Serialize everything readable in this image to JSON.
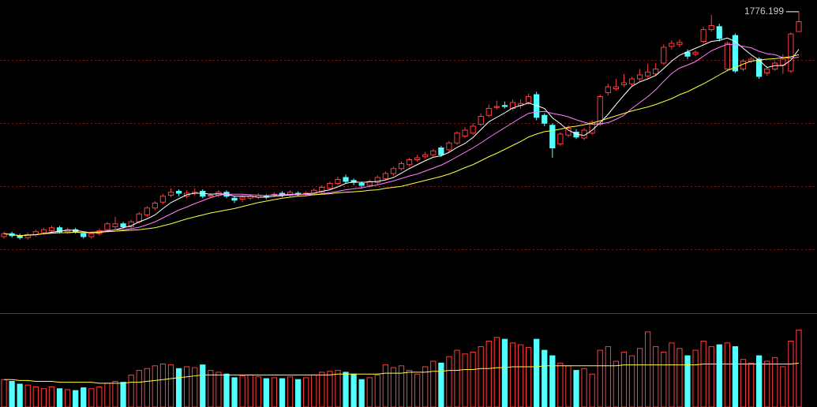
{
  "chart_data": {
    "type": "candlestick",
    "up_color": "#ff3c3c",
    "down_color": "#54ffff",
    "ylim": [
      1168,
      1800
    ],
    "open": [
      1320,
      1326,
      1322,
      1318,
      1324,
      1328,
      1332,
      1338,
      1330,
      1334,
      1326,
      1320,
      1326,
      1334,
      1340,
      1346,
      1340,
      1350,
      1364,
      1378,
      1390,
      1404,
      1412,
      1402,
      1408,
      1412,
      1402,
      1404,
      1410,
      1398,
      1396,
      1398,
      1400,
      1402,
      1404,
      1408,
      1404,
      1408,
      1406,
      1408,
      1410,
      1418,
      1428,
      1440,
      1434,
      1428,
      1424,
      1430,
      1438,
      1448,
      1458,
      1466,
      1476,
      1482,
      1486,
      1500,
      1496,
      1510,
      1524,
      1530,
      1548,
      1566,
      1582,
      1586,
      1580,
      1586,
      1592,
      1608,
      1566,
      1546,
      1508,
      1526,
      1532,
      1520,
      1530,
      1548,
      1612,
      1620,
      1628,
      1630,
      1640,
      1646,
      1650,
      1672,
      1706,
      1710,
      1694,
      1690,
      1716,
      1740,
      1746,
      1660,
      1728,
      1660,
      1676,
      1680,
      1652,
      1660,
      1668,
      1656,
      1736
    ],
    "high": [
      1330,
      1330,
      1326,
      1328,
      1334,
      1338,
      1342,
      1342,
      1338,
      1338,
      1330,
      1330,
      1336,
      1350,
      1360,
      1350,
      1354,
      1370,
      1382,
      1392,
      1406,
      1418,
      1416,
      1414,
      1418,
      1416,
      1408,
      1414,
      1414,
      1402,
      1404,
      1406,
      1408,
      1406,
      1410,
      1412,
      1414,
      1412,
      1412,
      1418,
      1424,
      1432,
      1442,
      1446,
      1438,
      1432,
      1436,
      1444,
      1452,
      1462,
      1472,
      1480,
      1486,
      1492,
      1498,
      1504,
      1514,
      1534,
      1542,
      1550,
      1570,
      1588,
      1596,
      1594,
      1598,
      1598,
      1610,
      1614,
      1570,
      1550,
      1532,
      1546,
      1538,
      1540,
      1556,
      1608,
      1630,
      1640,
      1650,
      1644,
      1660,
      1670,
      1672,
      1710,
      1718,
      1720,
      1700,
      1698,
      1746,
      1770,
      1752,
      1716,
      1732,
      1680,
      1684,
      1684,
      1666,
      1676,
      1690,
      1734,
      1776.199
    ],
    "low": [
      1316,
      1318,
      1314,
      1314,
      1320,
      1324,
      1328,
      1326,
      1326,
      1326,
      1316,
      1316,
      1322,
      1330,
      1336,
      1336,
      1336,
      1346,
      1360,
      1374,
      1386,
      1400,
      1402,
      1398,
      1404,
      1398,
      1398,
      1400,
      1398,
      1388,
      1390,
      1394,
      1396,
      1396,
      1400,
      1400,
      1400,
      1402,
      1402,
      1404,
      1406,
      1414,
      1424,
      1428,
      1424,
      1418,
      1420,
      1426,
      1434,
      1444,
      1454,
      1462,
      1472,
      1478,
      1482,
      1482,
      1492,
      1506,
      1520,
      1526,
      1544,
      1562,
      1578,
      1580,
      1576,
      1580,
      1588,
      1556,
      1544,
      1480,
      1504,
      1522,
      1518,
      1516,
      1526,
      1544,
      1606,
      1616,
      1624,
      1626,
      1636,
      1642,
      1646,
      1668,
      1700,
      1704,
      1680,
      1686,
      1712,
      1736,
      1716,
      1656,
      1652,
      1656,
      1672,
      1640,
      1646,
      1656,
      1650,
      1652,
      1736
    ],
    "close": [
      1326,
      1322,
      1318,
      1324,
      1330,
      1334,
      1338,
      1330,
      1334,
      1330,
      1320,
      1326,
      1332,
      1346,
      1346,
      1340,
      1350,
      1366,
      1378,
      1388,
      1402,
      1410,
      1408,
      1408,
      1410,
      1402,
      1404,
      1410,
      1402,
      1394,
      1400,
      1402,
      1404,
      1400,
      1406,
      1404,
      1410,
      1406,
      1408,
      1414,
      1420,
      1428,
      1436,
      1432,
      1430,
      1424,
      1432,
      1440,
      1448,
      1458,
      1468,
      1476,
      1480,
      1486,
      1494,
      1486,
      1510,
      1530,
      1536,
      1544,
      1564,
      1580,
      1584,
      1584,
      1592,
      1590,
      1604,
      1562,
      1550,
      1500,
      1528,
      1540,
      1522,
      1536,
      1552,
      1604,
      1624,
      1624,
      1632,
      1640,
      1648,
      1654,
      1660,
      1704,
      1712,
      1714,
      1686,
      1694,
      1740,
      1748,
      1722,
      1712,
      1656,
      1676,
      1680,
      1645,
      1660,
      1672,
      1680,
      1731,
      1756
    ],
    "ma_lines": [
      {
        "color": "#ffffff",
        "values": [
          1326,
          1324,
          1322,
          1323,
          1324,
          1326,
          1329,
          1331,
          1333,
          1333,
          1330,
          1328,
          1328,
          1331,
          1334,
          1338,
          1342,
          1350,
          1356,
          1364,
          1377,
          1389,
          1397,
          1405,
          1408,
          1408,
          1406,
          1407,
          1406,
          1402,
          1402,
          1402,
          1400,
          1400,
          1402,
          1403,
          1405,
          1405,
          1407,
          1408,
          1412,
          1415,
          1421,
          1428,
          1431,
          1430,
          1431,
          1432,
          1435,
          1440,
          1449,
          1458,
          1466,
          1474,
          1481,
          1484,
          1491,
          1501,
          1509,
          1521,
          1537,
          1553,
          1562,
          1571,
          1581,
          1586,
          1591,
          1586,
          1580,
          1561,
          1549,
          1536,
          1528,
          1525,
          1536,
          1551,
          1568,
          1588,
          1607,
          1625,
          1634,
          1640,
          1647,
          1661,
          1676,
          1688,
          1695,
          1702,
          1709,
          1716,
          1718,
          1723,
          1716,
          1702,
          1689,
          1678,
          1663,
          1667,
          1667,
          1678,
          1700
        ]
      },
      {
        "color": "#ff80ff",
        "values": [
          1326,
          1324,
          1322,
          1323,
          1324,
          1326,
          1327,
          1328,
          1328,
          1329,
          1328,
          1329,
          1330,
          1332,
          1334,
          1334,
          1336,
          1339,
          1344,
          1350,
          1358,
          1366,
          1374,
          1380,
          1387,
          1393,
          1399,
          1404,
          1406,
          1406,
          1406,
          1405,
          1404,
          1403,
          1405,
          1405,
          1406,
          1406,
          1406,
          1405,
          1407,
          1409,
          1412,
          1415,
          1417,
          1419,
          1422,
          1425,
          1429,
          1433,
          1438,
          1443,
          1447,
          1453,
          1459,
          1465,
          1473,
          1482,
          1491,
          1500,
          1510,
          1521,
          1531,
          1541,
          1551,
          1561,
          1570,
          1573,
          1574,
          1570,
          1567,
          1563,
          1557,
          1552,
          1548,
          1549,
          1551,
          1558,
          1566,
          1580,
          1592,
          1604,
          1618,
          1635,
          1651,
          1662,
          1668,
          1675,
          1686,
          1697,
          1704,
          1710,
          1709,
          1706,
          1703,
          1696,
          1691,
          1689,
          1683,
          1682,
          1684
        ]
      },
      {
        "color": "#ffff40",
        "values": [
          1326,
          1324,
          1322,
          1323,
          1324,
          1326,
          1327,
          1328,
          1328,
          1329,
          1328,
          1328,
          1329,
          1330,
          1331,
          1332,
          1333,
          1334,
          1336,
          1338,
          1342,
          1346,
          1351,
          1356,
          1360,
          1364,
          1368,
          1371,
          1374,
          1377,
          1381,
          1385,
          1389,
          1392,
          1395,
          1398,
          1400,
          1402,
          1403,
          1405,
          1406,
          1407,
          1409,
          1410,
          1411,
          1412,
          1414,
          1415,
          1418,
          1420,
          1422,
          1426,
          1430,
          1434,
          1438,
          1442,
          1447,
          1453,
          1460,
          1466,
          1474,
          1482,
          1489,
          1497,
          1505,
          1513,
          1522,
          1528,
          1533,
          1535,
          1538,
          1542,
          1544,
          1547,
          1550,
          1555,
          1560,
          1565,
          1570,
          1575,
          1579,
          1583,
          1588,
          1594,
          1600,
          1608,
          1614,
          1622,
          1630,
          1639,
          1648,
          1657,
          1663,
          1670,
          1676,
          1678,
          1680,
          1681,
          1683,
          1685,
          1689
        ]
      }
    ],
    "volume_lim": [
      0,
      100
    ],
    "volume": [
      30,
      28,
      25,
      24,
      22,
      20,
      22,
      20,
      19,
      18,
      21,
      20,
      22,
      26,
      28,
      27,
      35,
      40,
      42,
      45,
      47,
      46,
      42,
      44,
      43,
      46,
      40,
      38,
      36,
      32,
      34,
      35,
      33,
      31,
      32,
      31,
      33,
      30,
      32,
      35,
      38,
      39,
      40,
      38,
      36,
      30,
      32,
      35,
      46,
      43,
      45,
      40,
      36,
      44,
      50,
      48,
      55,
      62,
      58,
      60,
      66,
      72,
      76,
      74,
      70,
      68,
      65,
      74,
      62,
      56,
      48,
      45,
      40,
      42,
      36,
      62,
      66,
      50,
      60,
      56,
      64,
      82,
      66,
      60,
      70,
      64,
      56,
      62,
      72,
      66,
      68,
      70,
      66,
      52,
      48,
      56,
      50,
      54,
      44,
      72,
      84
    ],
    "volume_ma": {
      "color": "#ffff40",
      "values": [
        30,
        30,
        29,
        29,
        28,
        28,
        28,
        27,
        27,
        27,
        27,
        27,
        26,
        26,
        26,
        26,
        27,
        27,
        28,
        29,
        30,
        31,
        32,
        33,
        34,
        35,
        35,
        35,
        35,
        35,
        35,
        35,
        35,
        35,
        35,
        35,
        35,
        35,
        35,
        35,
        35,
        35,
        36,
        36,
        36,
        36,
        36,
        36,
        37,
        37,
        37,
        38,
        38,
        38,
        39,
        39,
        40,
        40,
        41,
        41,
        42,
        42,
        43,
        43,
        44,
        44,
        44,
        44,
        45,
        45,
        45,
        45,
        45,
        45,
        45,
        45,
        45,
        45,
        46,
        46,
        46,
        46,
        46,
        46,
        46,
        46,
        46,
        46,
        47,
        47,
        47,
        47,
        47,
        47,
        47,
        47,
        47,
        47,
        47,
        47,
        48
      ]
    }
  }
}
